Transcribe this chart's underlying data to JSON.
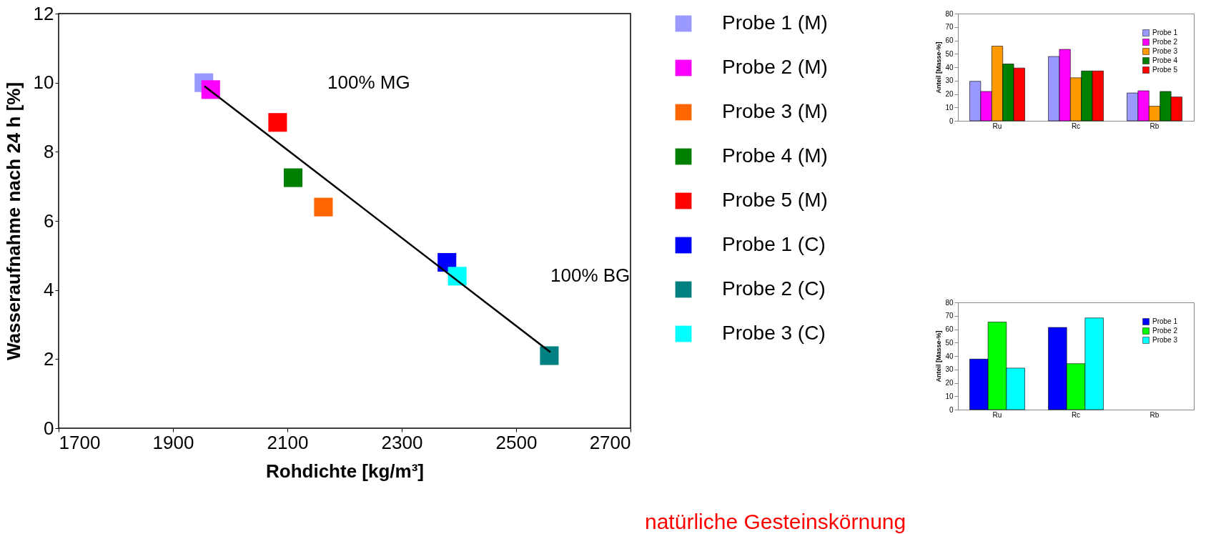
{
  "chart_data": [
    {
      "type": "scatter",
      "xlabel": "Rohdichte [kg/m³]",
      "ylabel": "Wasseraufnahme nach 24 h [%]",
      "xlim": [
        1700,
        2700
      ],
      "xticks": [
        1700,
        1900,
        2100,
        2300,
        2500,
        2700
      ],
      "ylim": [
        0,
        12
      ],
      "yticks": [
        0,
        2,
        4,
        6,
        8,
        10,
        12
      ],
      "grid": false,
      "legend": "right",
      "marker": "square",
      "series": [
        {
          "name": "Probe 1 (M)",
          "color": "#9999ff",
          "x": [
            1954
          ],
          "values": [
            10.0
          ]
        },
        {
          "name": "Probe 2 (M)",
          "color": "#ff00ff",
          "x": [
            1966
          ],
          "values": [
            9.8
          ]
        },
        {
          "name": "Probe 3 (M)",
          "color": "#ff6600",
          "x": [
            2163
          ],
          "values": [
            6.4
          ]
        },
        {
          "name": "Probe 4 (M)",
          "color": "#008000",
          "x": [
            2110
          ],
          "values": [
            7.25
          ]
        },
        {
          "name": "Probe 5 (M)",
          "color": "#ff0000",
          "x": [
            2083
          ],
          "values": [
            8.85
          ]
        },
        {
          "name": "Probe 1 (C)",
          "color": "#0000ff",
          "x": [
            2379
          ],
          "values": [
            4.8
          ]
        },
        {
          "name": "Probe 2 (C)",
          "color": "#008080",
          "x": [
            2558
          ],
          "values": [
            2.1
          ]
        },
        {
          "name": "Probe 3 (C)",
          "color": "#00ffff",
          "x": [
            2397
          ],
          "values": [
            4.4
          ]
        },
        {
          "type": "line",
          "color": "#000000",
          "marker": "none",
          "x": [
            1955,
            2560
          ],
          "values": [
            9.9,
            2.2
          ]
        }
      ],
      "annotations": [
        "100% MG",
        "100% BG",
        "natürliche Gesteinskörnung"
      ]
    },
    {
      "type": "bar",
      "ylabel": "Anteil [Masse-%]",
      "categories": [
        "Ru",
        "Rc",
        "Rb"
      ],
      "ylim": [
        0,
        80
      ],
      "yticks": [
        0,
        10,
        20,
        30,
        40,
        50,
        60,
        70,
        80
      ],
      "grid": false,
      "legend": "top right",
      "series": [
        {
          "name": "Probe 1",
          "color": "#9999ff",
          "values": [
            29.5,
            48,
            20.8
          ]
        },
        {
          "name": "Probe 2",
          "color": "#ff00ff",
          "values": [
            21.9,
            53.3,
            22.4
          ]
        },
        {
          "name": "Probe 3",
          "color": "#ff9900",
          "values": [
            55.7,
            32.1,
            10.9
          ]
        },
        {
          "name": "Probe 4",
          "color": "#008000",
          "values": [
            42.4,
            37.2,
            21.9
          ]
        },
        {
          "name": "Probe 5",
          "color": "#ff0000",
          "values": [
            39.4,
            37.2,
            17.8
          ]
        }
      ]
    },
    {
      "type": "bar",
      "ylabel": "Anteil [Masse-%]",
      "categories": [
        "Ru",
        "Rc",
        "Rb"
      ],
      "ylim": [
        0,
        80
      ],
      "yticks": [
        0,
        10,
        20,
        30,
        40,
        50,
        60,
        70,
        80
      ],
      "grid": false,
      "legend": "top right",
      "series": [
        {
          "name": "Probe 1",
          "color": "#0000ff",
          "values": [
            37.7,
            61.3,
            0
          ]
        },
        {
          "name": "Probe 2",
          "color": "#00ff00",
          "values": [
            65.3,
            34.3,
            0
          ]
        },
        {
          "name": "Probe 3",
          "color": "#00ffff",
          "values": [
            31,
            68.4,
            0
          ]
        }
      ]
    }
  ]
}
